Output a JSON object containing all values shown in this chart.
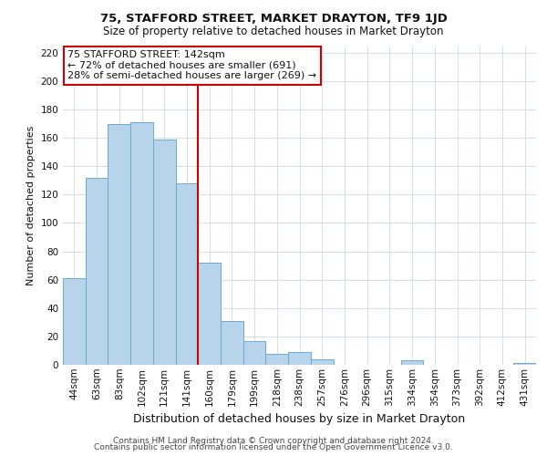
{
  "title": "75, STAFFORD STREET, MARKET DRAYTON, TF9 1JD",
  "subtitle": "Size of property relative to detached houses in Market Drayton",
  "xlabel": "Distribution of detached houses by size in Market Drayton",
  "ylabel": "Number of detached properties",
  "bar_labels": [
    "44sqm",
    "63sqm",
    "83sqm",
    "102sqm",
    "121sqm",
    "141sqm",
    "160sqm",
    "179sqm",
    "199sqm",
    "218sqm",
    "238sqm",
    "257sqm",
    "276sqm",
    "296sqm",
    "315sqm",
    "334sqm",
    "354sqm",
    "373sqm",
    "392sqm",
    "412sqm",
    "431sqm"
  ],
  "bar_values": [
    61,
    132,
    170,
    171,
    159,
    128,
    72,
    31,
    17,
    8,
    9,
    4,
    0,
    0,
    0,
    3,
    0,
    0,
    0,
    0,
    1
  ],
  "bar_color": "#b8d4ea",
  "bar_edge_color": "#6aaad4",
  "highlight_line_index": 5,
  "highlight_line_color": "#cc0000",
  "annotation_line1": "75 STAFFORD STREET: 142sqm",
  "annotation_line2": "← 72% of detached houses are smaller (691)",
  "annotation_line3": "28% of semi-detached houses are larger (269) →",
  "annotation_box_edge_color": "#cc0000",
  "ylim": [
    0,
    225
  ],
  "yticks": [
    0,
    20,
    40,
    60,
    80,
    100,
    120,
    140,
    160,
    180,
    200,
    220
  ],
  "footer_line1": "Contains HM Land Registry data © Crown copyright and database right 2024.",
  "footer_line2": "Contains public sector information licensed under the Open Government Licence v3.0.",
  "bg_color": "#ffffff",
  "grid_color": "#ccd9e8",
  "title_fontsize": 9.5,
  "subtitle_fontsize": 8.5,
  "ylabel_fontsize": 8,
  "xlabel_fontsize": 9,
  "tick_fontsize": 7.5,
  "footer_fontsize": 6.5,
  "ann_fontsize": 8
}
